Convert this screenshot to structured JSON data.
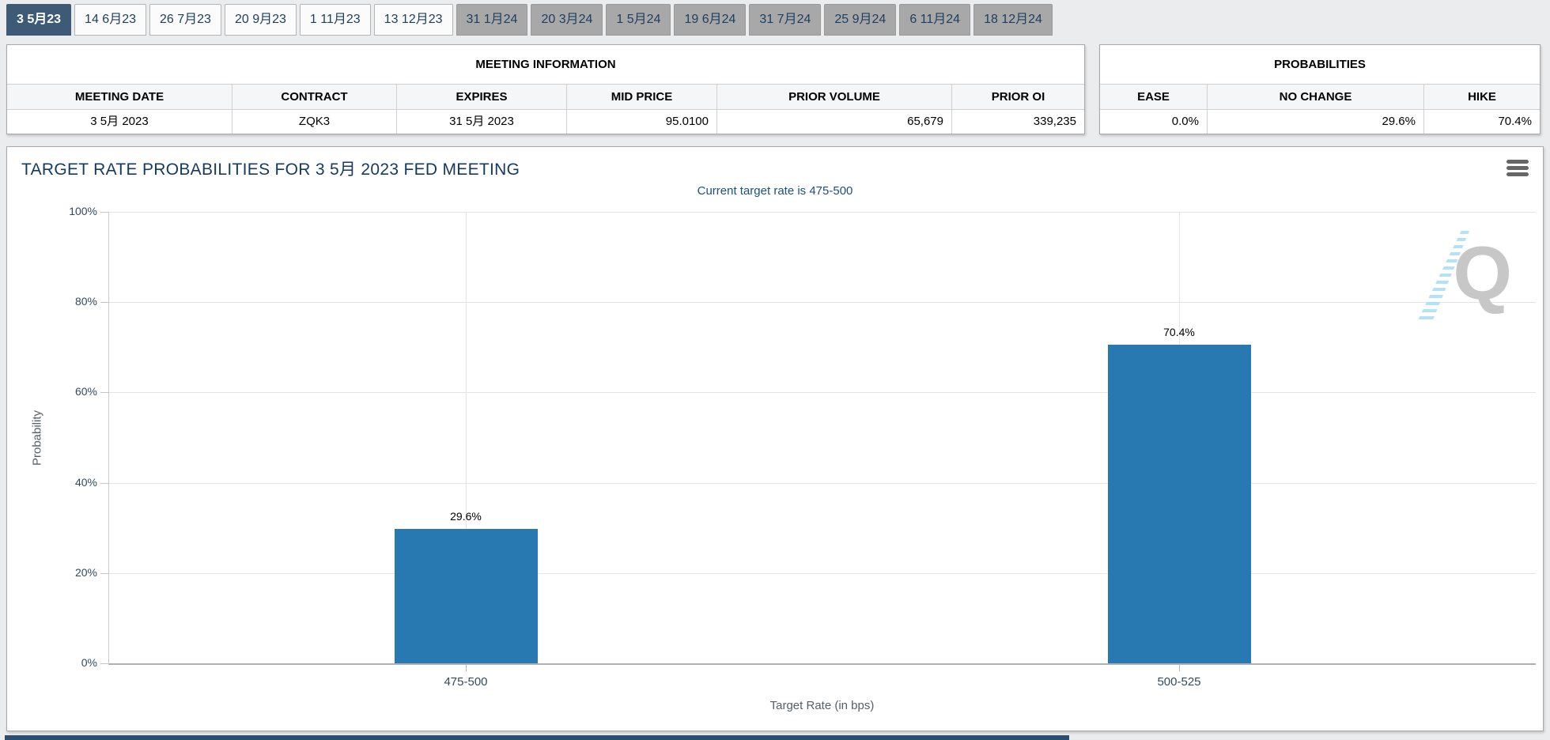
{
  "tabs": {
    "items": [
      {
        "label": "3 5月23",
        "state": "active"
      },
      {
        "label": "14 6月23",
        "state": "default"
      },
      {
        "label": "26 7月23",
        "state": "default"
      },
      {
        "label": "20 9月23",
        "state": "default"
      },
      {
        "label": "1 11月23",
        "state": "default"
      },
      {
        "label": "13 12月23",
        "state": "default"
      },
      {
        "label": "31 1月24",
        "state": "future"
      },
      {
        "label": "20 3月24",
        "state": "future"
      },
      {
        "label": "1 5月24",
        "state": "future"
      },
      {
        "label": "19 6月24",
        "state": "future"
      },
      {
        "label": "31 7月24",
        "state": "future"
      },
      {
        "label": "25 9月24",
        "state": "future"
      },
      {
        "label": "6 11月24",
        "state": "future"
      },
      {
        "label": "18 12月24",
        "state": "future"
      }
    ]
  },
  "meeting_info": {
    "title": "MEETING INFORMATION",
    "columns": [
      "MEETING DATE",
      "CONTRACT",
      "EXPIRES",
      "MID PRICE",
      "PRIOR VOLUME",
      "PRIOR OI"
    ],
    "row": {
      "meeting_date": "3 5月 2023",
      "contract": "ZQK3",
      "expires": "31 5月 2023",
      "mid_price": "95.0100",
      "prior_volume": "65,679",
      "prior_oi": "339,235"
    }
  },
  "probabilities": {
    "title": "PROBABILITIES",
    "columns": [
      "EASE",
      "NO CHANGE",
      "HIKE"
    ],
    "row": {
      "ease": "0.0%",
      "no_change": "29.6%",
      "hike": "70.4%"
    }
  },
  "chart_data": {
    "type": "bar",
    "title": "TARGET RATE PROBABILITIES FOR 3 5月 2023 FED MEETING",
    "subtitle": "Current target rate is 475-500",
    "categories": [
      "475-500",
      "500-525"
    ],
    "values": [
      29.6,
      70.4
    ],
    "data_labels": [
      "29.6%",
      "70.4%"
    ],
    "xlabel": "Target Rate (in bps)",
    "ylabel": "Probability",
    "ylim": [
      0,
      100
    ],
    "y_ticks": [
      "100%",
      "80%",
      "60%",
      "40%",
      "20%",
      "0%"
    ],
    "grid": true,
    "legend": "none",
    "bar_color": "#2878b1",
    "watermark": "Q"
  }
}
